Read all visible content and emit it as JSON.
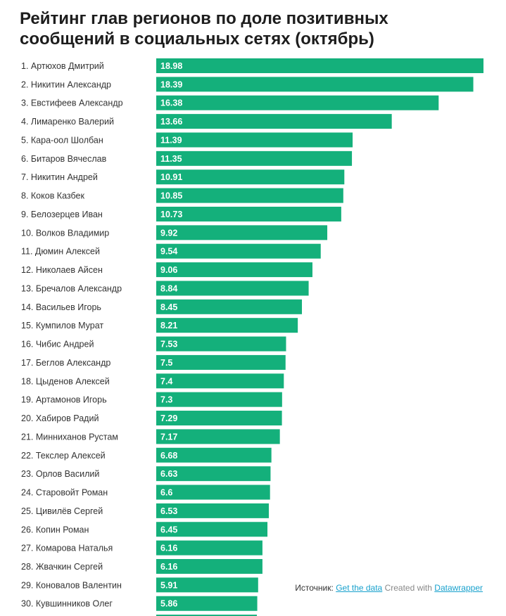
{
  "title_lines": [
    "Рейтинг глав регионов по доле позитивных",
    "сообщений в социальных сетях (октябрь)"
  ],
  "footer": {
    "source_label": "Источник:",
    "get_data_link": "Get the data",
    "created_with": "Created with",
    "datawrapper_link": "Datawrapper"
  },
  "colors": {
    "bar": "#14b07b",
    "bar_label": "#ffffff",
    "row_label": "#333333",
    "link": "#18a1cd"
  },
  "chart_data": {
    "type": "bar",
    "orientation": "horizontal",
    "title": "Рейтинг глав регионов по доле позитивных сообщений в социальных сетях (октябрь)",
    "categories": [
      "1. Артюхов Дмитрий",
      "2. Никитин Александр",
      "3. Евстифеев Александр",
      "4. Лимаренко Валерий",
      "5. Кара-оол Шолбан",
      "6. Битаров Вячеслав",
      "7. Никитин Андрей",
      "8. Коков Казбек",
      "9. Белозерцев Иван",
      "10. Волков Владимир",
      "11. Дюмин Алексей",
      "12. Николаев Айсен",
      "13. Бречалов Александр",
      "14. Васильев Игорь",
      "15. Кумпилов Мурат",
      "16. Чибис Андрей",
      "17. Беглов Александр",
      "18. Цыденов Алексей",
      "19. Артамонов Игорь",
      "20. Хабиров Радий",
      "21. Минниханов Рустам",
      "22. Текслер Алексей",
      "23. Орлов Василий",
      "24. Старовойт Роман",
      "25. Цивилёв Сергей",
      "26. Копин Роман",
      "27. Комарова Наталья",
      "28. Жвачкин Сергей",
      "29. Коновалов Валентин",
      "30. Кувшинников Олег"
    ],
    "values": [
      18.98,
      18.39,
      16.38,
      13.66,
      11.39,
      11.35,
      10.91,
      10.85,
      10.73,
      9.92,
      9.54,
      9.06,
      8.84,
      8.45,
      8.21,
      7.53,
      7.5,
      7.4,
      7.3,
      7.29,
      7.17,
      6.68,
      6.63,
      6.6,
      6.53,
      6.45,
      6.16,
      6.16,
      5.91,
      5.86
    ],
    "value_labels": [
      "18.98",
      "18.39",
      "16.38",
      "13.66",
      "11.39",
      "11.35",
      "10.91",
      "10.85",
      "10.73",
      "9.92",
      "9.54",
      "9.06",
      "8.84",
      "8.45",
      "8.21",
      "7.53",
      "7.5",
      "7.4",
      "7.3",
      "7.29",
      "7.17",
      "6.68",
      "6.63",
      "6.6",
      "6.53",
      "6.45",
      "6.16",
      "6.16",
      "5.91",
      "5.86"
    ],
    "xlim": [
      0,
      18.98
    ],
    "grid": false,
    "legend": "none"
  }
}
